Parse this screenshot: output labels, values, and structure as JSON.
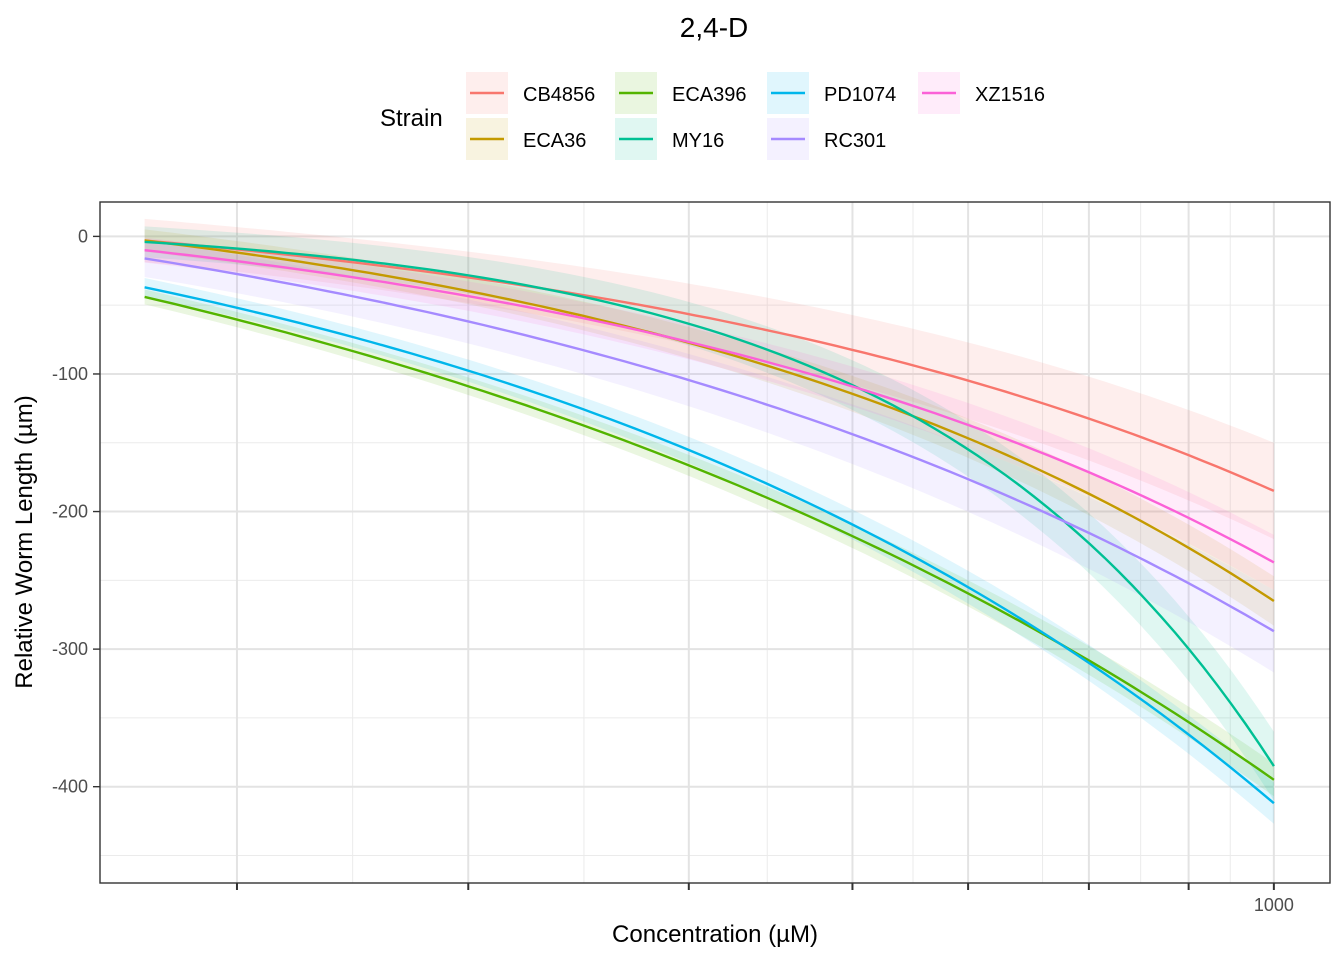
{
  "chart_data": {
    "type": "line",
    "title": "2,4-D",
    "xlabel": "Concentration (µM)",
    "ylabel": "Relative Worm Length (µm)",
    "xscale": "log",
    "xlim": [
      0.88,
      1400
    ],
    "ylim": [
      -470,
      25
    ],
    "x_tick_labels": [
      {
        "x": 1000,
        "label": "1000"
      }
    ],
    "x_major_ticks": [
      2,
      8,
      30,
      80,
      160,
      330,
      600
    ],
    "x_minor_gridlines": [
      4,
      16,
      48,
      115,
      250,
      450,
      770
    ],
    "y_ticks": [
      {
        "y": 0,
        "label": "0"
      },
      {
        "y": -100,
        "label": "-100"
      },
      {
        "y": -200,
        "label": "-200"
      },
      {
        "y": -300,
        "label": "-300"
      },
      {
        "y": -400,
        "label": "-400"
      }
    ],
    "y_minor_gridlines": [
      -50,
      -150,
      -250,
      -350,
      -450
    ],
    "grid": true,
    "legend": {
      "title": "Strain",
      "position": "top"
    },
    "x": [
      1.15,
      1000
    ],
    "series": [
      {
        "name": "CB4856",
        "color": "#F8766D",
        "y0": -3,
        "y1": -185,
        "k": 1.6,
        "band": 35
      },
      {
        "name": "ECA36",
        "color": "#C49A00",
        "y0": -3,
        "y1": -265,
        "k": 1.7,
        "band": 18
      },
      {
        "name": "ECA396",
        "color": "#53B400",
        "y0": -44,
        "y1": -395,
        "k": 1.1,
        "band": 12
      },
      {
        "name": "MY16",
        "color": "#00C094",
        "y0": -4,
        "y1": -385,
        "k": 3.2,
        "band": 25
      },
      {
        "name": "PD1074",
        "color": "#00B6EB",
        "y0": -37,
        "y1": -412,
        "k": 1.4,
        "band": 15
      },
      {
        "name": "RC301",
        "color": "#A58AFF",
        "y0": -16,
        "y1": -287,
        "k": 1.3,
        "band": 30
      },
      {
        "name": "XZ1516",
        "color": "#FB61D7",
        "y0": -10,
        "y1": -237,
        "k": 1.6,
        "band": 20
      }
    ]
  }
}
